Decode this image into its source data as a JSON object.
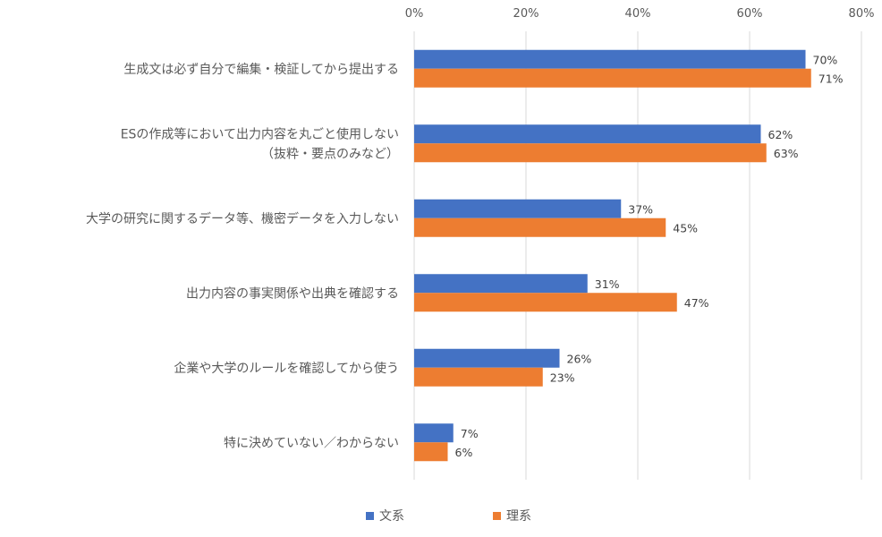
{
  "chart_data": {
    "type": "bar",
    "orientation": "horizontal",
    "title": "",
    "xlabel": "",
    "ylabel": "",
    "xlim": [
      0,
      80
    ],
    "x_ticks": [
      0,
      20,
      40,
      60,
      80
    ],
    "tick_labels": [
      "0%",
      "20%",
      "40%",
      "60%",
      "80%"
    ],
    "grid": true,
    "legend_position": "bottom",
    "categories": [
      [
        "生成文は必ず自分で編集・検証してから提出する"
      ],
      [
        "ESの作成等において出力内容を丸ごと使用しない",
        "（抜粋・要点のみなど）"
      ],
      [
        "大学の研究に関するデータ等、機密データを入力しない"
      ],
      [
        "出力内容の事実関係や出典を確認する"
      ],
      [
        "企業や大学のルールを確認してから使う"
      ],
      [
        "特に決めていない／わからない"
      ]
    ],
    "series": [
      {
        "name": "文系",
        "color": "#4472C4",
        "values": [
          70,
          62,
          37,
          31,
          26,
          7
        ],
        "labels": [
          "70%",
          "62%",
          "37%",
          "31%",
          "26%",
          "7%"
        ]
      },
      {
        "name": "理系",
        "color": "#ED7D31",
        "values": [
          71,
          63,
          45,
          47,
          23,
          6
        ],
        "labels": [
          "71%",
          "63%",
          "45%",
          "47%",
          "23%",
          "6%"
        ]
      }
    ]
  }
}
